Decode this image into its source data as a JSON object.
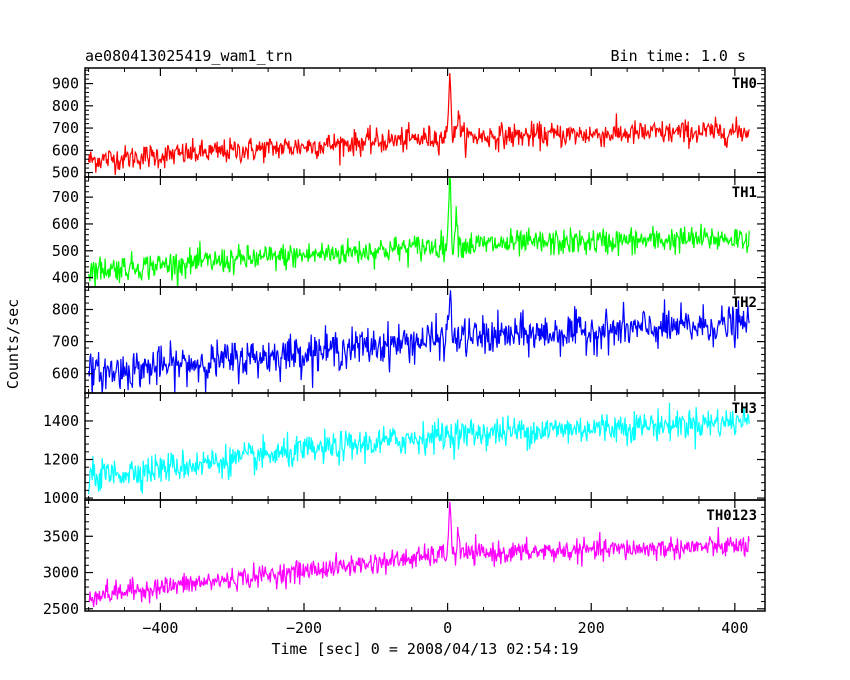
{
  "header": {
    "title": "ae080413025419_wam1_trn",
    "bin_time": "Bin time: 1.0 s"
  },
  "axes": {
    "xlabel": "Time [sec] 0 = 2008/04/13 02:54:19",
    "ylabel": "Counts/sec",
    "xlim": [
      -505,
      442
    ],
    "xticks": [
      -400,
      -200,
      0,
      200,
      400
    ],
    "xtick_labels": [
      "−400",
      "−200",
      "0",
      "200",
      "400"
    ]
  },
  "chart_data": [
    {
      "type": "line",
      "name": "TH0",
      "color": "#ff0000",
      "ylim": [
        480,
        970
      ],
      "yticks": [
        500,
        600,
        700,
        800,
        900
      ],
      "x_range": [
        -500,
        420
      ],
      "trend": [
        [
          -500,
          555
        ],
        [
          0,
          660
        ],
        [
          420,
          685
        ]
      ],
      "noise_std": 28,
      "peaks": [
        {
          "x": 3,
          "y": 960
        },
        {
          "x": 15,
          "y": 790
        }
      ]
    },
    {
      "type": "line",
      "name": "TH1",
      "color": "#00ff00",
      "ylim": [
        365,
        775
      ],
      "yticks": [
        400,
        500,
        600,
        700
      ],
      "x_range": [
        -500,
        420
      ],
      "trend": [
        [
          -500,
          428
        ],
        [
          0,
          520
        ],
        [
          420,
          548
        ]
      ],
      "noise_std": 25,
      "peaks": [
        {
          "x": 3,
          "y": 770
        },
        {
          "x": 12,
          "y": 640
        }
      ]
    },
    {
      "type": "line",
      "name": "TH2",
      "color": "#0000ff",
      "ylim": [
        540,
        870
      ],
      "yticks": [
        600,
        700,
        800
      ],
      "x_range": [
        -500,
        420
      ],
      "trend": [
        [
          -500,
          600
        ],
        [
          0,
          710
        ],
        [
          420,
          755
        ]
      ],
      "noise_std": 30,
      "peaks": [
        {
          "x": 3,
          "y": 850
        }
      ]
    },
    {
      "type": "line",
      "name": "TH3",
      "color": "#00ffff",
      "ylim": [
        990,
        1545
      ],
      "yticks": [
        1000,
        1200,
        1400
      ],
      "x_range": [
        -500,
        420
      ],
      "trend": [
        [
          -500,
          1110
        ],
        [
          0,
          1330
        ],
        [
          420,
          1400
        ]
      ],
      "noise_std": 40,
      "peaks": []
    },
    {
      "type": "line",
      "name": "TH0123",
      "color": "#ff00ff",
      "ylim": [
        2470,
        4000
      ],
      "yticks": [
        2500,
        3000,
        3500
      ],
      "x_range": [
        -500,
        420
      ],
      "trend": [
        [
          -500,
          2680
        ],
        [
          0,
          3250
        ],
        [
          420,
          3370
        ]
      ],
      "noise_std": 75,
      "peaks": [
        {
          "x": 3,
          "y": 3960
        },
        {
          "x": 15,
          "y": 3520
        }
      ]
    }
  ]
}
